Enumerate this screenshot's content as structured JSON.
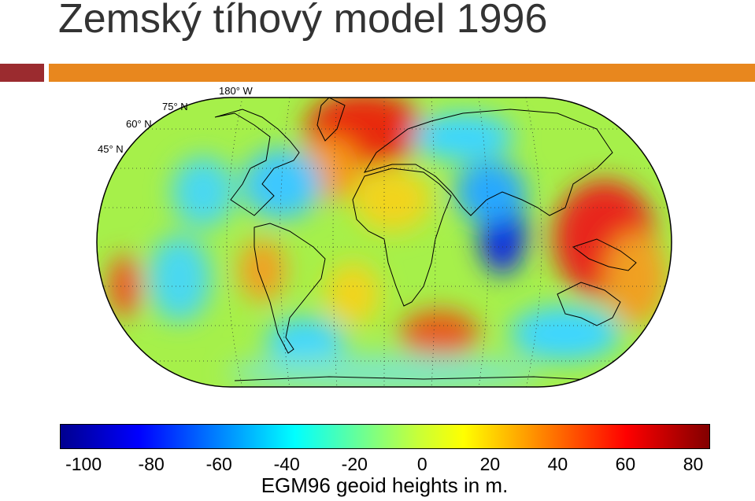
{
  "slide": {
    "title": "Zemský tíhový model 1996",
    "accent_colors": [
      "#9b2b2f",
      "#e8871e"
    ]
  },
  "map": {
    "projection": "Robinson",
    "graticule_labels": [
      "180° W",
      "75° N",
      "60° N",
      "45° N"
    ],
    "field": "geoid heights",
    "coastlines": true,
    "graticule": "dotted"
  },
  "colorbar": {
    "ticks": [
      "-100",
      "-80",
      "-60",
      "-40",
      "-20",
      "0",
      "20",
      "40",
      "60",
      "80"
    ],
    "range": [
      -107,
      85
    ],
    "caption": "EGM96 geoid heights in m.",
    "colormap": "jet"
  }
}
